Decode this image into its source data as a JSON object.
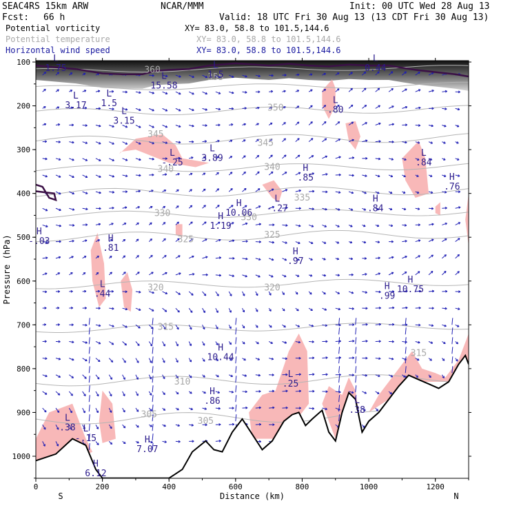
{
  "header": {
    "model": "SEAC4RS 15km ARW",
    "center": "NCAR/MMM",
    "init": "Init: 00 UTC Wed 28 Aug 13",
    "fcst_label": "Fcst:",
    "fcst_value": "66 h",
    "valid": "Valid: 18 UTC Fri 30 Aug 13 (13 CDT Fri 30 Aug 13)"
  },
  "legend": [
    {
      "label": "Potential vorticity",
      "xy": "XY=  83.0, 58.8 to 101.5,144.6",
      "color": "#000000"
    },
    {
      "label": "Potential temperature",
      "xy": "XY=  83.0, 58.8 to 101.5,144.6",
      "color": "#a8a8a8"
    },
    {
      "label": "Horizontal wind speed",
      "xy": "XY=  83.0, 58.8 to 101.5,144.6",
      "color": "#1a1aa0"
    }
  ],
  "colors": {
    "pv_fill": "#f8b8b8",
    "isentrope": "#b4b4b4",
    "tropopause": "#3b1046",
    "arrow": "#1e1eb4",
    "hl_label": "#2b1b8c",
    "terrain": "#000000"
  },
  "chart_data": {
    "type": "cross-section",
    "xlabel": "Distance (km)",
    "ylabel": "Pressure (hPa)",
    "xlim": [
      0,
      1300
    ],
    "ylim": [
      1050,
      100
    ],
    "y_scale": "linear",
    "x_ticks": [
      "0",
      "200",
      "400",
      "600",
      "800",
      "1000",
      "1200"
    ],
    "y_ticks": [
      "100",
      "200",
      "300",
      "400",
      "500",
      "600",
      "700",
      "800",
      "900",
      "1000"
    ],
    "endpoints": {
      "left": "S",
      "right": "N"
    },
    "isentropes": [
      {
        "label": "305",
        "x": 340,
        "p": 905
      },
      {
        "label": "305",
        "x": 510,
        "p": 920
      },
      {
        "label": "310",
        "x": 440,
        "p": 830
      },
      {
        "label": "315",
        "x": 390,
        "p": 705
      },
      {
        "label": "315",
        "x": 1150,
        "p": 765
      },
      {
        "label": "320",
        "x": 360,
        "p": 615
      },
      {
        "label": "320",
        "x": 710,
        "p": 615
      },
      {
        "label": "325",
        "x": 450,
        "p": 505
      },
      {
        "label": "325",
        "x": 710,
        "p": 495
      },
      {
        "label": "330",
        "x": 380,
        "p": 445
      },
      {
        "label": "330",
        "x": 640,
        "p": 455
      },
      {
        "label": "335",
        "x": 800,
        "p": 410
      },
      {
        "label": "340",
        "x": 390,
        "p": 345
      },
      {
        "label": "340",
        "x": 710,
        "p": 340
      },
      {
        "label": "345",
        "x": 360,
        "p": 265
      },
      {
        "label": "345",
        "x": 690,
        "p": 285
      },
      {
        "label": "350",
        "x": 720,
        "p": 205
      },
      {
        "label": "360",
        "x": 350,
        "p": 118
      },
      {
        "label": "355",
        "x": 540,
        "p": 135
      }
    ],
    "pv_labels": [
      {
        "kind": "L",
        "value": "1.75",
        "x": 60,
        "p": 105
      },
      {
        "kind": "L",
        "value": "3.17",
        "x": 120,
        "p": 190
      },
      {
        "kind": "L",
        "value": "1.5",
        "x": 220,
        "p": 185
      },
      {
        "kind": "L",
        "value": "3.15",
        "x": 265,
        "p": 225
      },
      {
        "kind": "L",
        "value": "15.58",
        "x": 385,
        "p": 145
      },
      {
        "kind": "L",
        "value": "1.5",
        "x": 540,
        "p": 120
      },
      {
        "kind": "L",
        "value": "-.25",
        "x": 410,
        "p": 320
      },
      {
        "kind": "L",
        "value": "3.89",
        "x": 530,
        "p": 310
      },
      {
        "kind": "L",
        "value": ".80",
        "x": 900,
        "p": 200
      },
      {
        "kind": "L",
        "value": "0.44",
        "x": 1020,
        "p": 105
      },
      {
        "kind": "L",
        "value": ".84",
        "x": 1165,
        "p": 320
      },
      {
        "kind": "H",
        "value": ".76",
        "x": 1250,
        "p": 375
      },
      {
        "kind": "H",
        "value": ".85",
        "x": 810,
        "p": 355
      },
      {
        "kind": "H",
        "value": ".84",
        "x": 1020,
        "p": 425
      },
      {
        "kind": "L",
        "value": "-.27",
        "x": 725,
        "p": 425
      },
      {
        "kind": "H",
        "value": "10.06",
        "x": 610,
        "p": 435
      },
      {
        "kind": "H",
        "value": "1.19",
        "x": 555,
        "p": 465
      },
      {
        "kind": "H",
        "value": "-.03",
        "x": 10,
        "p": 500
      },
      {
        "kind": "H",
        "value": ".81",
        "x": 225,
        "p": 515
      },
      {
        "kind": "H",
        "value": ".97",
        "x": 780,
        "p": 545
      },
      {
        "kind": "L",
        "value": ".44",
        "x": 200,
        "p": 620
      },
      {
        "kind": "H",
        "value": ".99",
        "x": 1055,
        "p": 625
      },
      {
        "kind": "H",
        "value": "10.75",
        "x": 1125,
        "p": 610
      },
      {
        "kind": "H",
        "value": "10.44",
        "x": 555,
        "p": 765
      },
      {
        "kind": "L",
        "value": ".25",
        "x": 765,
        "p": 825
      },
      {
        "kind": "H",
        "value": ".86",
        "x": 530,
        "p": 865
      },
      {
        "kind": "L",
        "value": ".38",
        "x": 965,
        "p": 885
      },
      {
        "kind": "L",
        "value": ".38",
        "x": 95,
        "p": 925
      },
      {
        "kind": "L",
        "value": "-.15",
        "x": 150,
        "p": 950
      },
      {
        "kind": "H",
        "value": "7.07",
        "x": 335,
        "p": 975
      },
      {
        "kind": "H",
        "value": "6.12",
        "x": 180,
        "p": 1030
      }
    ],
    "pv_contour_labels": [
      {
        "value": "1.5",
        "x": 540,
        "p": 120
      },
      {
        "value": "1.5",
        "x": 220,
        "p": 185
      }
    ],
    "terrain_profile": [
      [
        0,
        1010
      ],
      [
        60,
        995
      ],
      [
        110,
        960
      ],
      [
        150,
        975
      ],
      [
        180,
        1030
      ],
      [
        200,
        1050
      ],
      [
        260,
        1050
      ],
      [
        330,
        1050
      ],
      [
        400,
        1050
      ],
      [
        440,
        1030
      ],
      [
        470,
        990
      ],
      [
        510,
        965
      ],
      [
        535,
        985
      ],
      [
        560,
        990
      ],
      [
        590,
        945
      ],
      [
        620,
        915
      ],
      [
        650,
        950
      ],
      [
        680,
        985
      ],
      [
        710,
        965
      ],
      [
        745,
        920
      ],
      [
        770,
        905
      ],
      [
        790,
        900
      ],
      [
        810,
        930
      ],
      [
        830,
        915
      ],
      [
        860,
        895
      ],
      [
        880,
        945
      ],
      [
        900,
        965
      ],
      [
        920,
        900
      ],
      [
        940,
        855
      ],
      [
        960,
        870
      ],
      [
        980,
        945
      ],
      [
        1000,
        920
      ],
      [
        1030,
        900
      ],
      [
        1060,
        870
      ],
      [
        1090,
        840
      ],
      [
        1120,
        815
      ],
      [
        1150,
        825
      ],
      [
        1180,
        835
      ],
      [
        1210,
        845
      ],
      [
        1240,
        830
      ],
      [
        1270,
        790
      ],
      [
        1290,
        770
      ],
      [
        1300,
        790
      ]
    ],
    "tropopause_1p5pvu": [
      [
        0,
        100
      ],
      [
        120,
        108
      ],
      [
        200,
        118
      ],
      [
        260,
        120
      ],
      [
        320,
        120
      ],
      [
        360,
        112
      ],
      [
        400,
        110
      ],
      [
        460,
        108
      ],
      [
        520,
        100
      ],
      [
        600,
        95
      ],
      [
        700,
        100
      ],
      [
        760,
        96
      ],
      [
        820,
        100
      ],
      [
        880,
        102
      ],
      [
        940,
        98
      ],
      [
        1000,
        100
      ],
      [
        1060,
        100
      ],
      [
        1100,
        105
      ],
      [
        1140,
        110
      ],
      [
        1200,
        115
      ],
      [
        1260,
        120
      ],
      [
        1300,
        125
      ]
    ]
  }
}
